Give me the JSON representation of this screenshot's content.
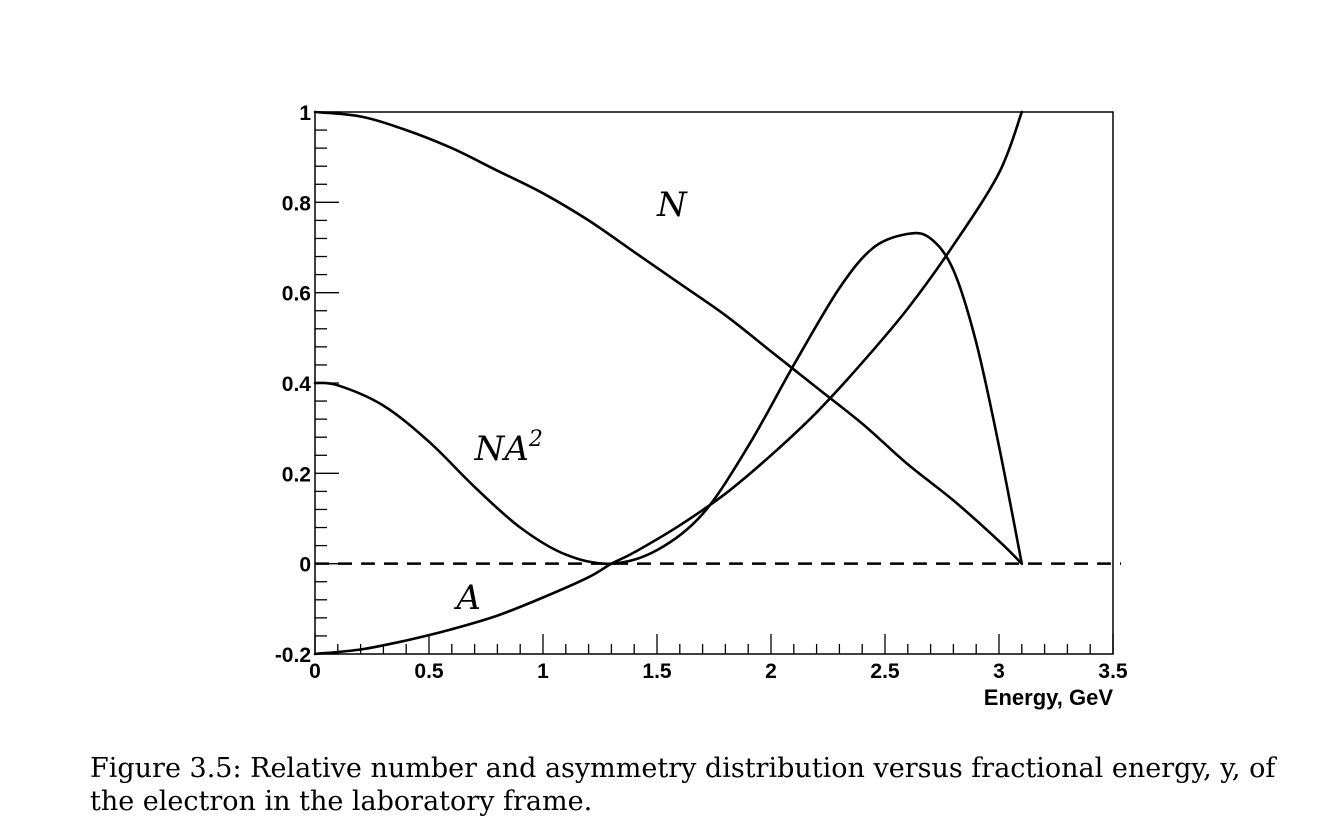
{
  "chart_data": {
    "type": "line",
    "title": "",
    "xlabel": "Energy, GeV",
    "ylabel": "",
    "xlim": [
      0,
      3.5
    ],
    "ylim": [
      -0.2,
      1.0
    ],
    "grid": false,
    "legend": "none",
    "x_ticks": [
      "0",
      "0.5",
      "1",
      "1.5",
      "2",
      "2.5",
      "3",
      "3.5"
    ],
    "y_ticks": [
      "-0.2",
      "0",
      "0.2",
      "0.4",
      "0.6",
      "0.8",
      "1"
    ],
    "reference_line": {
      "y": 0,
      "style": "dashed"
    },
    "series": [
      {
        "name": "N",
        "x": [
          0,
          0.2,
          0.4,
          0.6,
          0.8,
          1.0,
          1.2,
          1.4,
          1.6,
          1.8,
          2.0,
          2.2,
          2.4,
          2.6,
          2.8,
          3.0,
          3.1
        ],
        "y": [
          1.0,
          0.99,
          0.96,
          0.92,
          0.87,
          0.82,
          0.76,
          0.69,
          0.62,
          0.55,
          0.47,
          0.39,
          0.31,
          0.22,
          0.14,
          0.05,
          0.0
        ]
      },
      {
        "name": "A",
        "x": [
          0,
          0.2,
          0.4,
          0.6,
          0.8,
          1.0,
          1.2,
          1.3,
          1.4,
          1.6,
          1.8,
          2.0,
          2.2,
          2.4,
          2.6,
          2.8,
          3.0,
          3.1
        ],
        "y": [
          -0.2,
          -0.19,
          -0.17,
          -0.145,
          -0.115,
          -0.075,
          -0.03,
          0.0,
          0.025,
          0.085,
          0.155,
          0.24,
          0.335,
          0.445,
          0.565,
          0.705,
          0.865,
          1.0
        ]
      },
      {
        "name": "NA²",
        "x": [
          0,
          0.1,
          0.3,
          0.5,
          0.7,
          0.9,
          1.1,
          1.3,
          1.5,
          1.7,
          1.9,
          2.1,
          2.3,
          2.45,
          2.6,
          2.7,
          2.8,
          2.9,
          3.0,
          3.1
        ],
        "y": [
          0.4,
          0.395,
          0.35,
          0.27,
          0.17,
          0.08,
          0.02,
          0.0,
          0.03,
          0.11,
          0.26,
          0.44,
          0.61,
          0.7,
          0.73,
          0.72,
          0.65,
          0.49,
          0.26,
          0.0
        ]
      }
    ],
    "annotations": [
      {
        "text": "N",
        "x": 1.5,
        "y": 0.77
      },
      {
        "text": "NA",
        "sup": "2",
        "x": 0.7,
        "y": 0.23
      },
      {
        "text": "A",
        "x": 0.62,
        "y": -0.1
      }
    ]
  },
  "caption": "Figure 3.5: Relative number and asymmetry distribution versus fractional energy, y, of the electron in the laboratory frame."
}
